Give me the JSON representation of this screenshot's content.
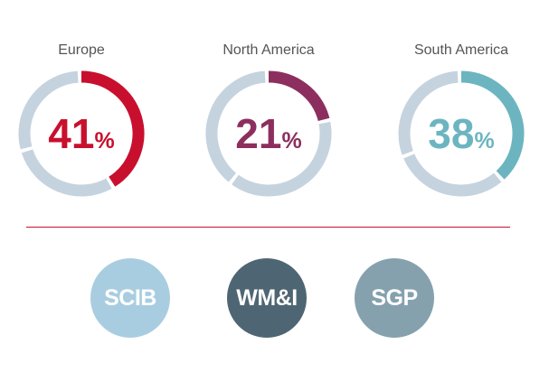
{
  "chart_data": [
    {
      "type": "pie",
      "title": "Europe",
      "value": 41,
      "unit": "%",
      "color": "#c8102e",
      "track_color": "#c5d3df",
      "label_color": "#c8102e"
    },
    {
      "type": "pie",
      "title": "North America",
      "value": 21,
      "unit": "%",
      "color": "#8c2f5e",
      "track_color": "#c5d3df",
      "label_color": "#8c2f5e"
    },
    {
      "type": "pie",
      "title": "South America",
      "value": 38,
      "unit": "%",
      "color": "#6cb5c0",
      "track_color": "#c5d3df",
      "label_color": "#6cb5c0"
    }
  ],
  "segments": [
    {
      "label": "SCIB",
      "color": "#a9cde0"
    },
    {
      "label": "WM&I",
      "color": "#4e6673"
    },
    {
      "label": "SGP",
      "color": "#85a1ae"
    }
  ],
  "divider_color": "#c8102e"
}
